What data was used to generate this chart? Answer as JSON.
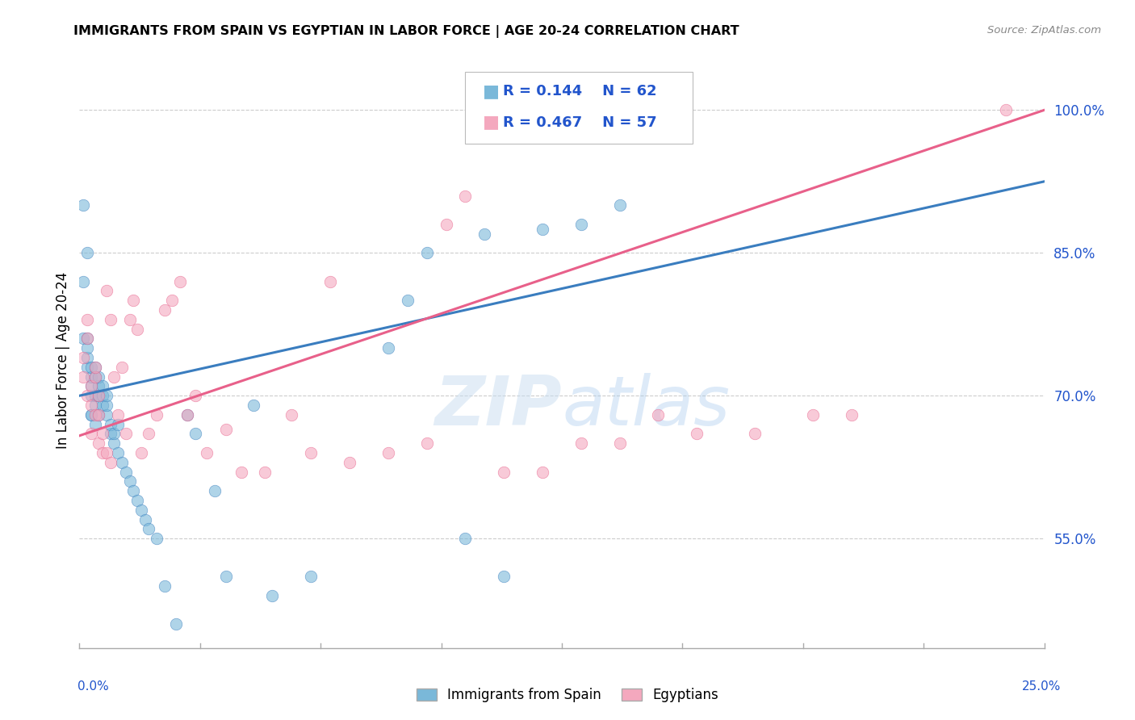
{
  "title": "IMMIGRANTS FROM SPAIN VS EGYPTIAN IN LABOR FORCE | AGE 20-24 CORRELATION CHART",
  "source": "Source: ZipAtlas.com",
  "ylabel": "In Labor Force | Age 20-24",
  "ytick_labels": [
    "55.0%",
    "70.0%",
    "85.0%",
    "100.0%"
  ],
  "ytick_values": [
    0.55,
    0.7,
    0.85,
    1.0
  ],
  "xlim": [
    0.0,
    0.25
  ],
  "ylim": [
    0.435,
    1.04
  ],
  "legend1_r": "R = 0.144",
  "legend1_n": "N = 62",
  "legend2_r": "R = 0.467",
  "legend2_n": "N = 57",
  "legend_label1": "Immigrants from Spain",
  "legend_label2": "Egyptians",
  "color_blue": "#7ab8d9",
  "color_pink": "#f4a8be",
  "color_blue_line": "#3a7dbf",
  "color_pink_line": "#e8608a",
  "color_blue_text": "#2255cc",
  "background": "#ffffff",
  "grid_color": "#cccccc",
  "spain_x": [
    0.001,
    0.001,
    0.001,
    0.002,
    0.002,
    0.002,
    0.002,
    0.002,
    0.003,
    0.003,
    0.003,
    0.003,
    0.003,
    0.003,
    0.004,
    0.004,
    0.004,
    0.004,
    0.004,
    0.005,
    0.005,
    0.005,
    0.005,
    0.006,
    0.006,
    0.006,
    0.007,
    0.007,
    0.007,
    0.008,
    0.008,
    0.009,
    0.009,
    0.01,
    0.01,
    0.011,
    0.012,
    0.013,
    0.014,
    0.015,
    0.016,
    0.017,
    0.018,
    0.02,
    0.022,
    0.025,
    0.028,
    0.03,
    0.035,
    0.038,
    0.045,
    0.05,
    0.06,
    0.08,
    0.085,
    0.09,
    0.1,
    0.105,
    0.11,
    0.12,
    0.13,
    0.14
  ],
  "spain_y": [
    0.76,
    0.82,
    0.9,
    0.73,
    0.74,
    0.75,
    0.76,
    0.85,
    0.68,
    0.7,
    0.71,
    0.72,
    0.73,
    0.68,
    0.67,
    0.69,
    0.7,
    0.72,
    0.73,
    0.7,
    0.71,
    0.72,
    0.68,
    0.69,
    0.7,
    0.71,
    0.68,
    0.69,
    0.7,
    0.66,
    0.67,
    0.65,
    0.66,
    0.64,
    0.67,
    0.63,
    0.62,
    0.61,
    0.6,
    0.59,
    0.58,
    0.57,
    0.56,
    0.55,
    0.5,
    0.46,
    0.68,
    0.66,
    0.6,
    0.51,
    0.69,
    0.49,
    0.51,
    0.75,
    0.8,
    0.85,
    0.55,
    0.87,
    0.51,
    0.875,
    0.88,
    0.9
  ],
  "egypt_x": [
    0.001,
    0.001,
    0.002,
    0.002,
    0.002,
    0.003,
    0.003,
    0.003,
    0.004,
    0.004,
    0.004,
    0.005,
    0.005,
    0.005,
    0.006,
    0.006,
    0.007,
    0.007,
    0.008,
    0.008,
    0.009,
    0.01,
    0.011,
    0.012,
    0.013,
    0.014,
    0.015,
    0.016,
    0.018,
    0.02,
    0.022,
    0.024,
    0.026,
    0.028,
    0.03,
    0.033,
    0.038,
    0.042,
    0.048,
    0.055,
    0.06,
    0.065,
    0.07,
    0.08,
    0.09,
    0.095,
    0.1,
    0.11,
    0.12,
    0.13,
    0.14,
    0.15,
    0.16,
    0.175,
    0.19,
    0.2,
    0.24
  ],
  "egypt_y": [
    0.72,
    0.74,
    0.7,
    0.76,
    0.78,
    0.66,
    0.69,
    0.71,
    0.68,
    0.72,
    0.73,
    0.65,
    0.68,
    0.7,
    0.64,
    0.66,
    0.64,
    0.81,
    0.63,
    0.78,
    0.72,
    0.68,
    0.73,
    0.66,
    0.78,
    0.8,
    0.77,
    0.64,
    0.66,
    0.68,
    0.79,
    0.8,
    0.82,
    0.68,
    0.7,
    0.64,
    0.665,
    0.62,
    0.62,
    0.68,
    0.64,
    0.82,
    0.63,
    0.64,
    0.65,
    0.88,
    0.91,
    0.62,
    0.62,
    0.65,
    0.65,
    0.68,
    0.66,
    0.66,
    0.68,
    0.68,
    1.0
  ],
  "spain_line_x0": 0.0,
  "spain_line_x1": 0.25,
  "spain_line_y0": 0.7,
  "spain_line_y1": 0.925,
  "egypt_line_x0": 0.0,
  "egypt_line_x1": 0.25,
  "egypt_line_y0": 0.658,
  "egypt_line_y1": 1.0
}
